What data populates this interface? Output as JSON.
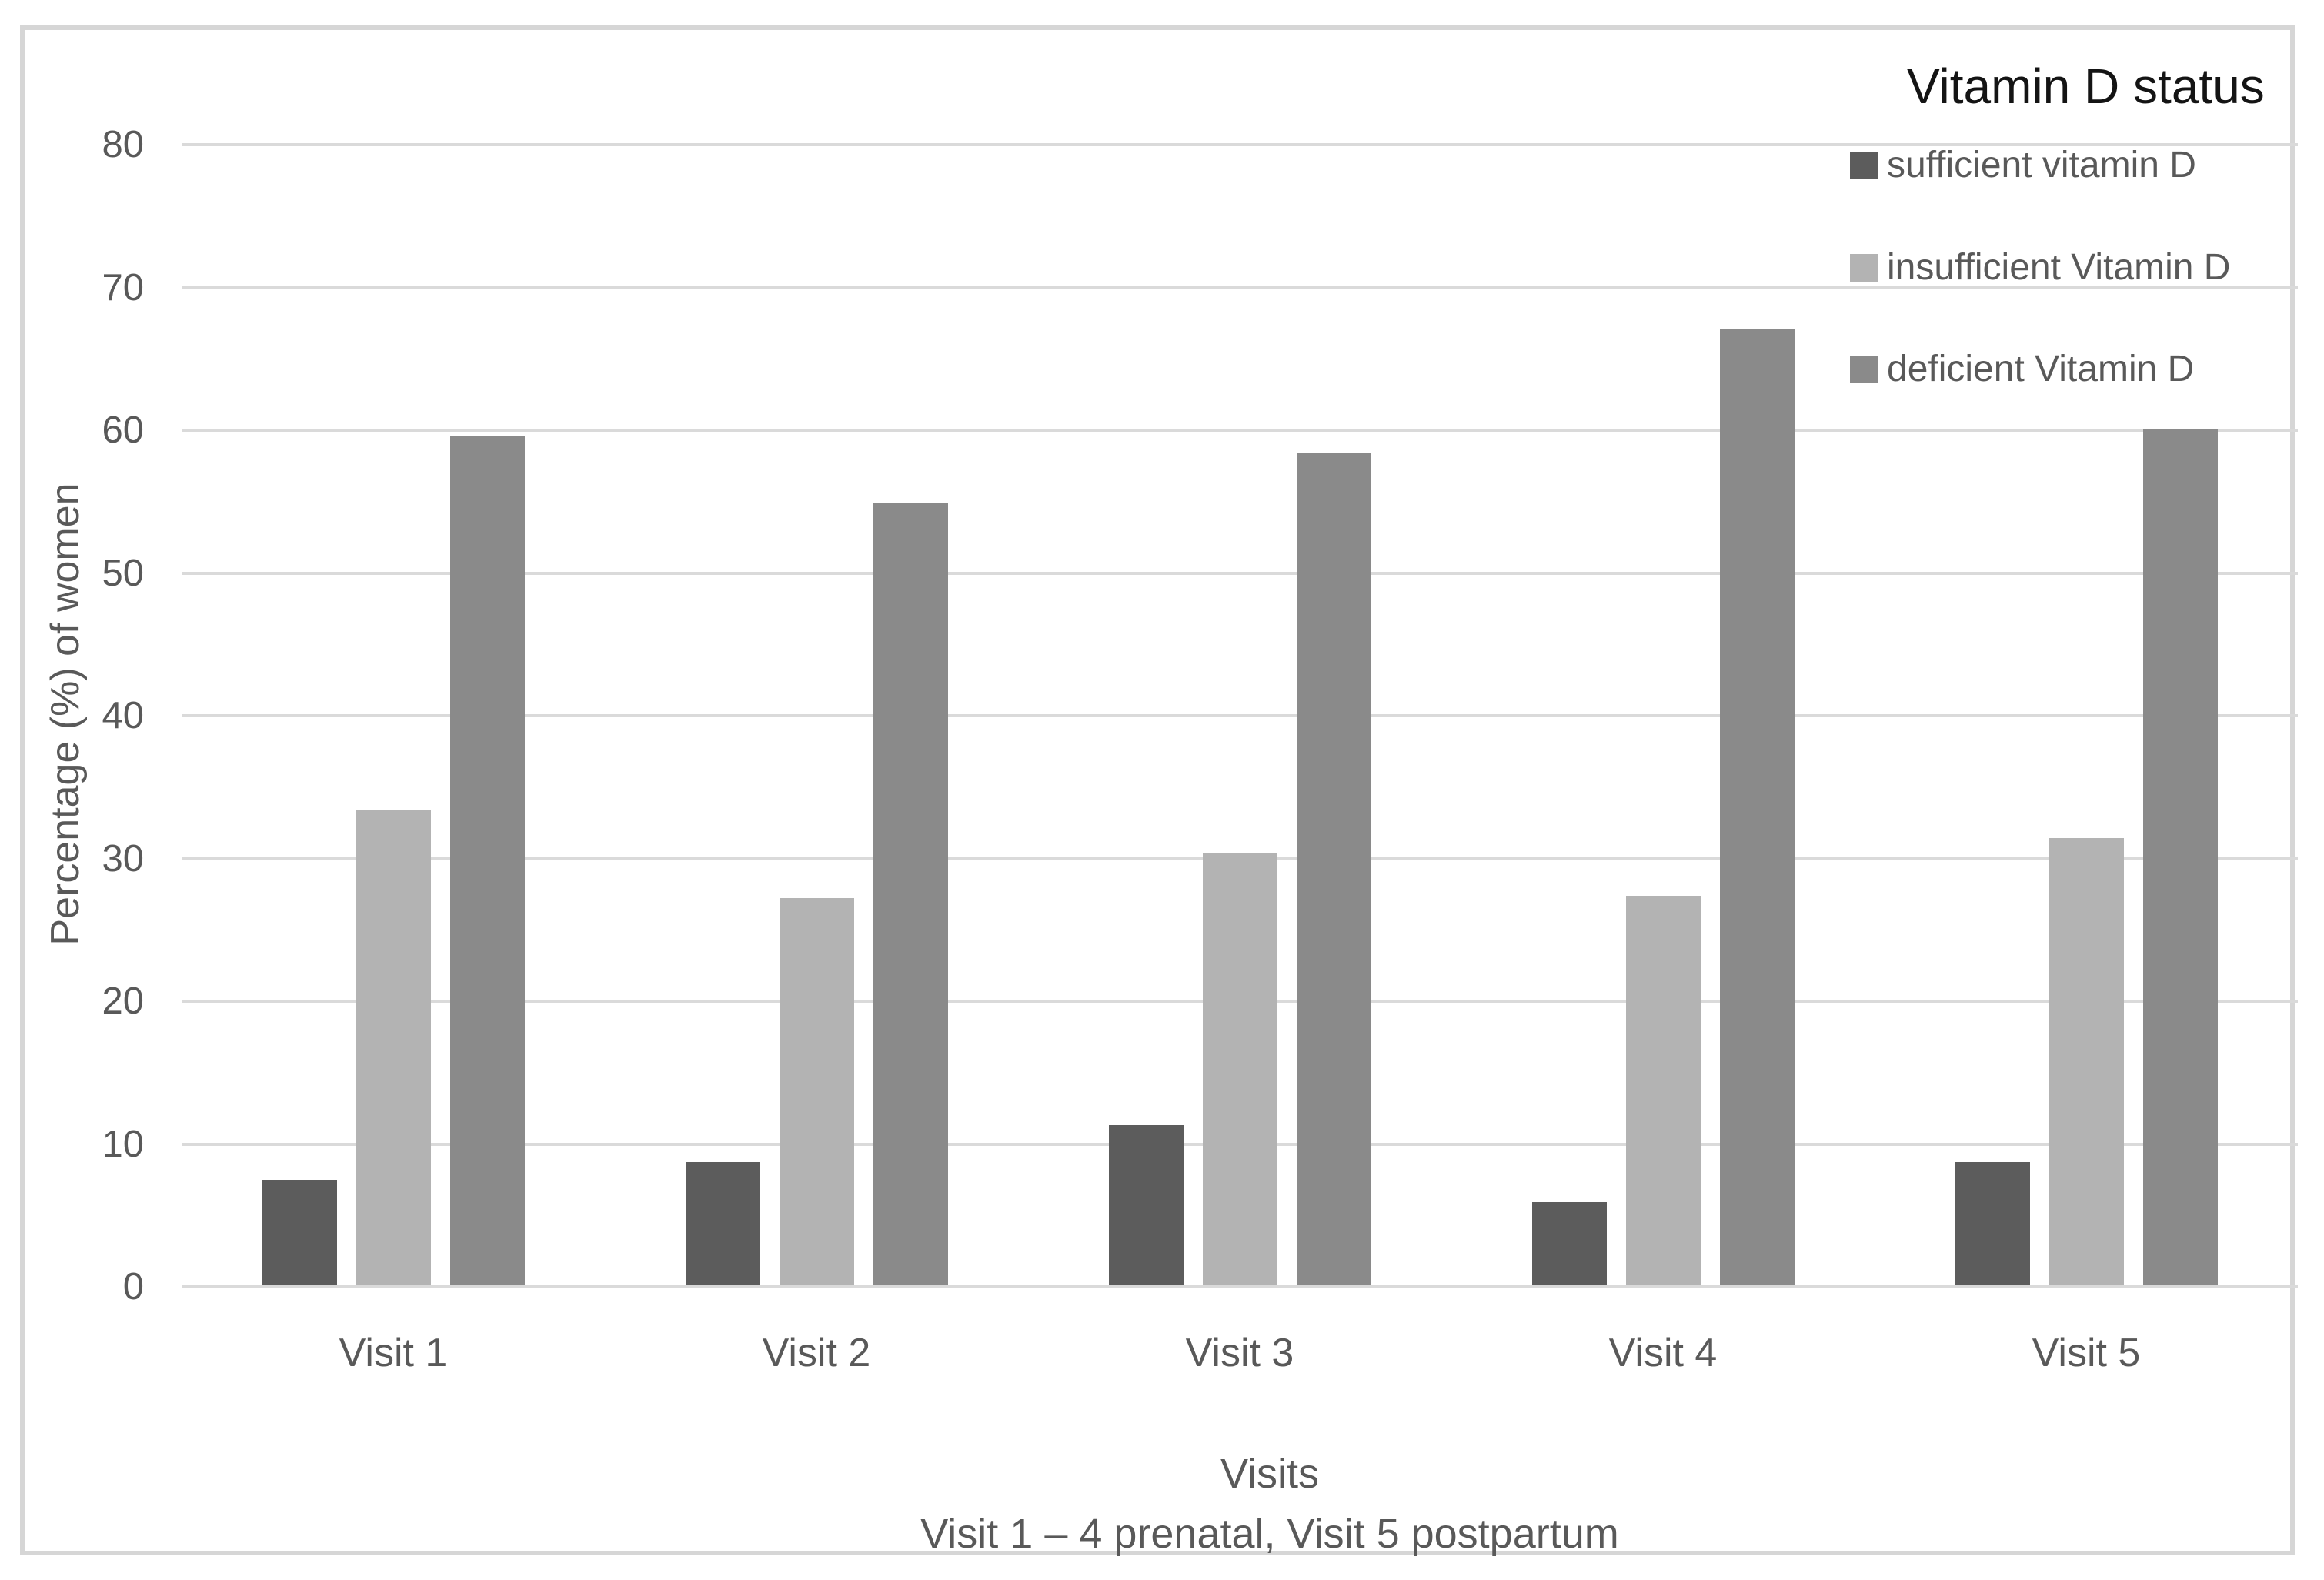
{
  "figure": {
    "background": "#ffffff",
    "border_color": "#d6d6d6"
  },
  "chart_data": {
    "type": "bar",
    "legend_title": "Vitamin D status",
    "legend_position": "top-right",
    "categories": [
      "Visit 1",
      "Visit 2",
      "Visit 3",
      "Visit 4",
      "Visit 5"
    ],
    "series": [
      {
        "name": "sufficient vitamin D",
        "color": "#5c5c5c",
        "values": [
          7.4,
          8.6,
          11.2,
          5.8,
          8.6
        ]
      },
      {
        "name": "insufficient Vitamin D",
        "color": "#b3b3b3",
        "values": [
          33.3,
          27.1,
          30.3,
          27.3,
          31.3
        ]
      },
      {
        "name": "deficient Vitamin D",
        "color": "#8a8a8a",
        "values": [
          59.5,
          54.8,
          58.3,
          67.0,
          60.0
        ]
      }
    ],
    "xlabel": "Visits",
    "x_caption": "Visit 1 – 4  prenatal, Visit 5 postpartum",
    "ylabel": "Percentage (%) of women",
    "ylim": [
      0,
      80
    ],
    "yticks": [
      0,
      10,
      20,
      30,
      40,
      50,
      60,
      70,
      80
    ],
    "grid": "horizontal",
    "gridline_color": "#dadada",
    "axis_text_color": "#595959"
  }
}
